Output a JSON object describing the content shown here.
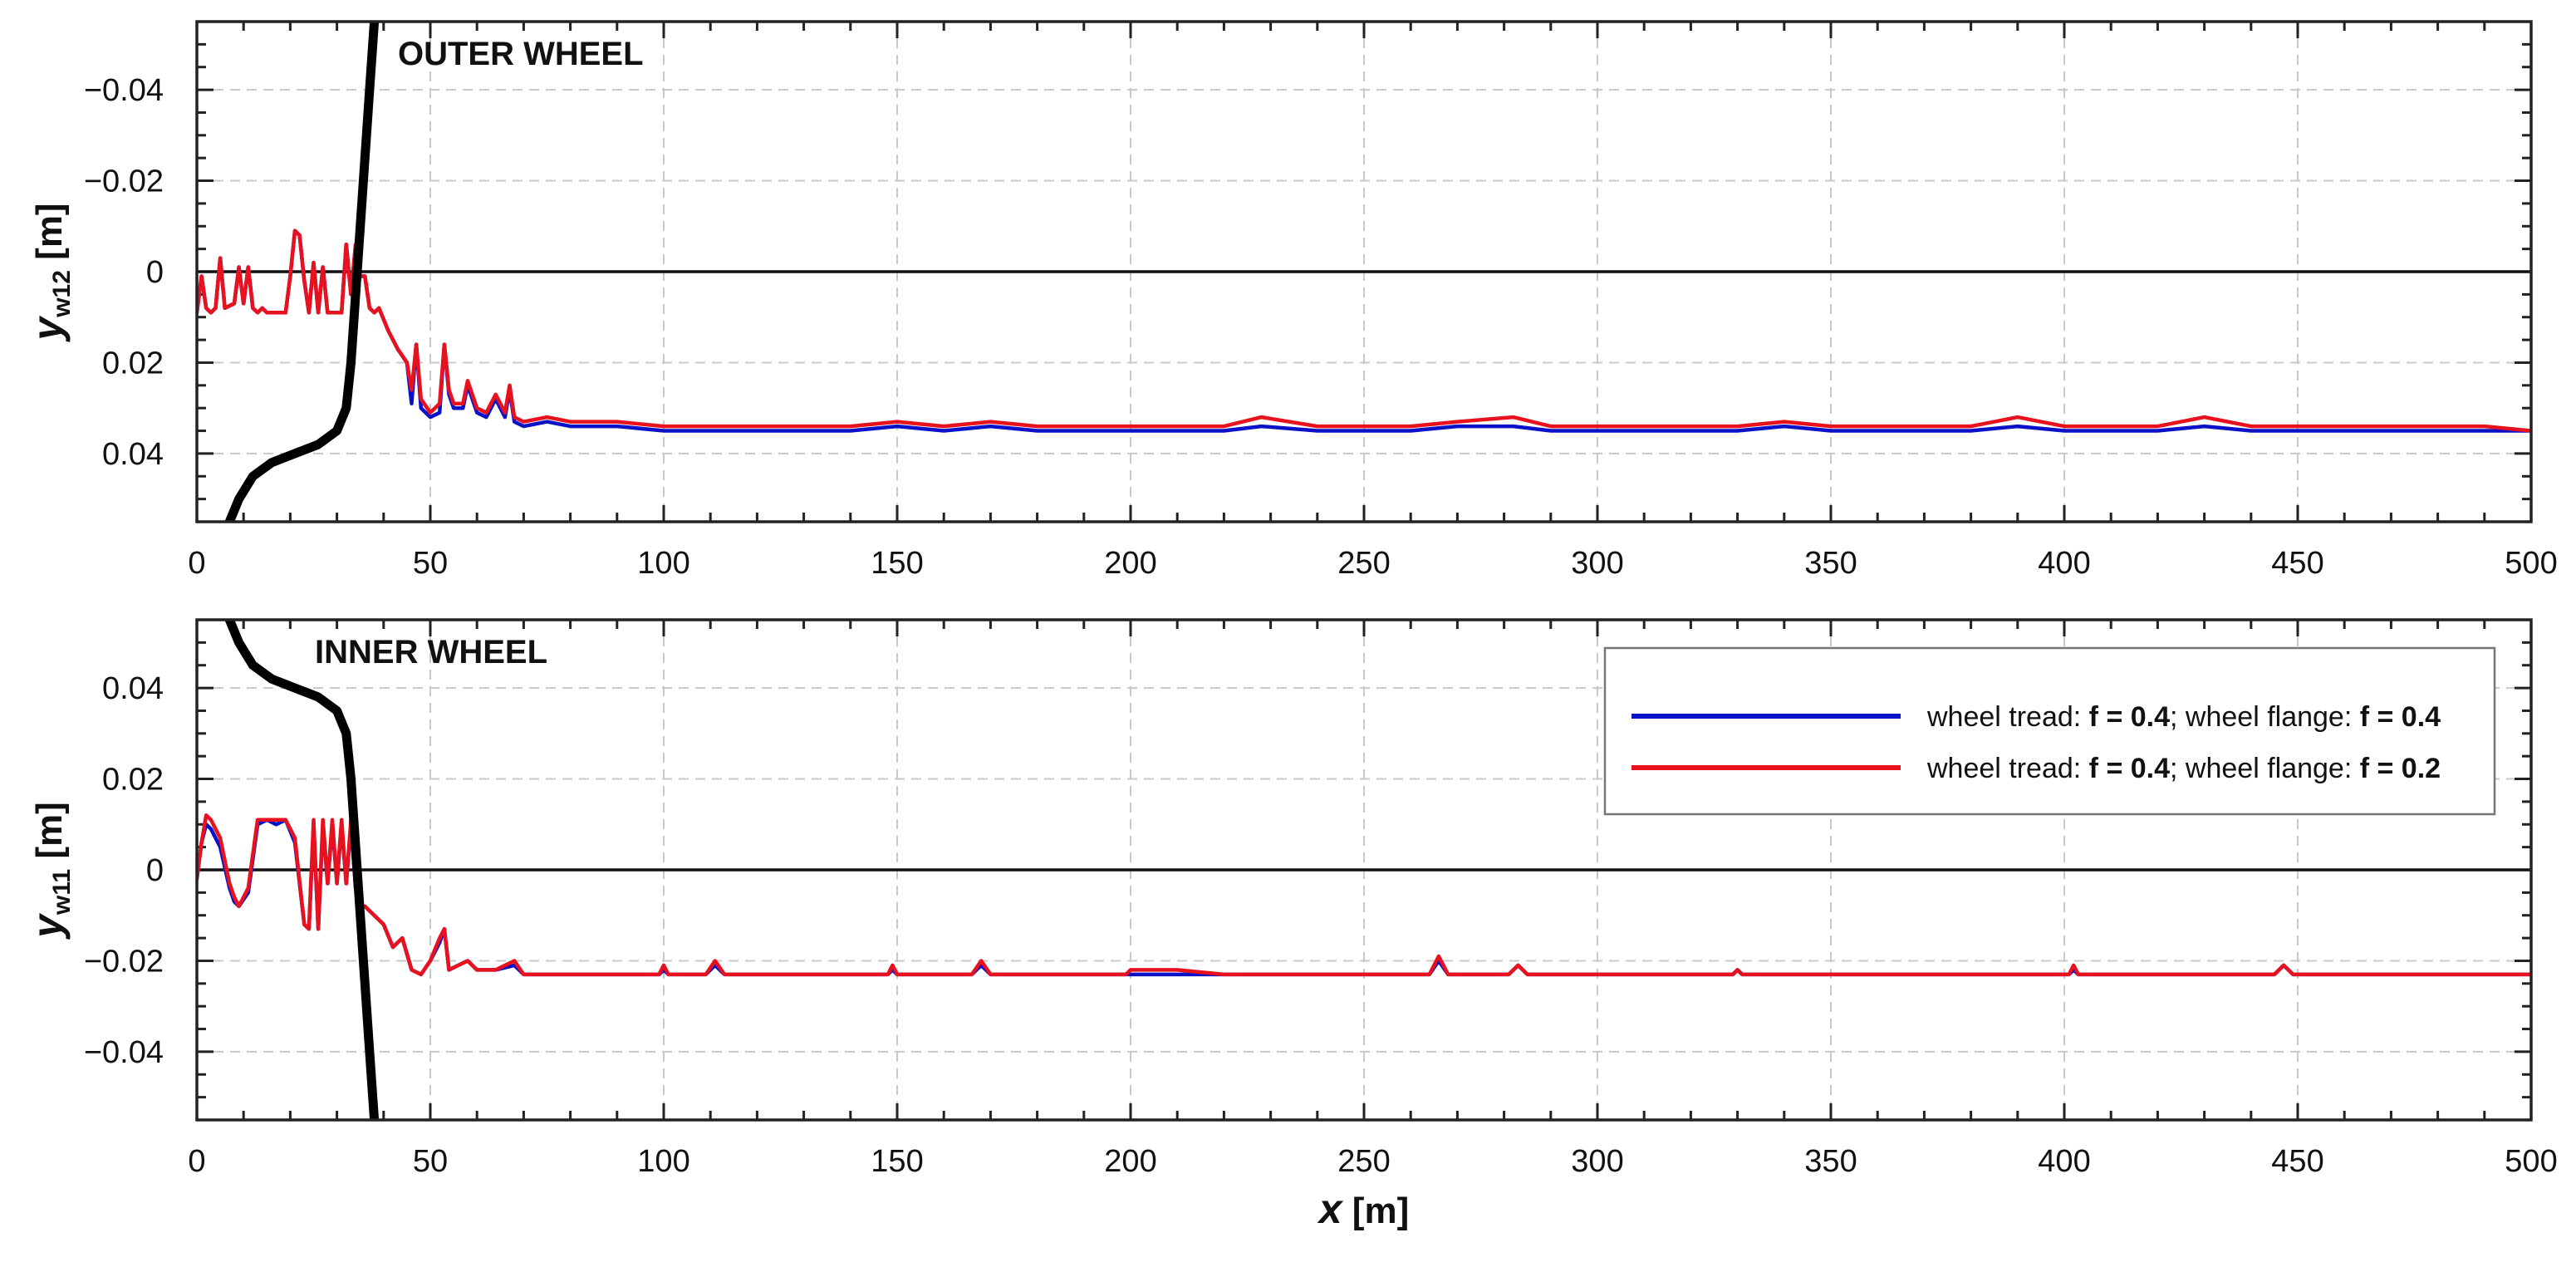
{
  "chart_data": [
    {
      "type": "line",
      "panel_title": "OUTER WHEEL",
      "ylabel_main": "y",
      "ylabel_sub": "w12",
      "ylabel_unit": " [m]",
      "xlim": [
        0,
        500
      ],
      "ylim": [
        -0.055,
        0.055
      ],
      "y_inverted": true,
      "grid": true,
      "x_ticks": [
        0,
        50,
        100,
        150,
        200,
        250,
        300,
        350,
        400,
        450,
        500
      ],
      "y_ticks": [
        -0.04,
        -0.02,
        0,
        0.02,
        0.04
      ],
      "y_tick_labels": [
        "−0.04",
        "−0.02",
        "0",
        "0.02",
        "0.04"
      ],
      "x_tick_labels": [
        "0",
        "50",
        "100",
        "150",
        "200",
        "250",
        "300",
        "350",
        "400",
        "450",
        "500"
      ],
      "zero_line": 0,
      "series": [
        {
          "color": "#0a12c8",
          "x": [
            0,
            1,
            2,
            3,
            4,
            5,
            6,
            8,
            9,
            10,
            11,
            12,
            13,
            14,
            15,
            17,
            19,
            20,
            21,
            22,
            23,
            24,
            25,
            26,
            27,
            28,
            29,
            30,
            31,
            32,
            33,
            34,
            35,
            36,
            37,
            38,
            39,
            41,
            43,
            45,
            46,
            47,
            48,
            50,
            52,
            53,
            54,
            55,
            57,
            58,
            60,
            62,
            64,
            66,
            67,
            68,
            70,
            75,
            80,
            85,
            90,
            100,
            110,
            120,
            130,
            140,
            150,
            160,
            170,
            180,
            190,
            200,
            210,
            220,
            228,
            240,
            250,
            260,
            270,
            282,
            290,
            300,
            310,
            320,
            330,
            340,
            350,
            360,
            370,
            380,
            390,
            400,
            410,
            420,
            430,
            440,
            450,
            460,
            470,
            480,
            490,
            500
          ],
          "y": [
            0.009,
            0.001,
            0.008,
            0.009,
            0.008,
            -0.003,
            0.008,
            0.007,
            -0.001,
            0.007,
            -0.001,
            0.008,
            0.009,
            0.008,
            0.009,
            0.009,
            0.009,
            0.001,
            -0.009,
            -0.008,
            0.002,
            0.009,
            -0.002,
            0.009,
            -0.001,
            0.009,
            0.009,
            0.009,
            0.009,
            -0.006,
            0.005,
            -0.006,
            0.001,
            0.001,
            0.008,
            0.009,
            0.008,
            0.013,
            0.017,
            0.02,
            0.029,
            0.016,
            0.03,
            0.032,
            0.031,
            0.016,
            0.027,
            0.03,
            0.03,
            0.025,
            0.031,
            0.032,
            0.028,
            0.032,
            0.026,
            0.033,
            0.034,
            0.033,
            0.034,
            0.034,
            0.034,
            0.035,
            0.035,
            0.035,
            0.035,
            0.035,
            0.034,
            0.035,
            0.034,
            0.035,
            0.035,
            0.035,
            0.035,
            0.035,
            0.034,
            0.035,
            0.035,
            0.035,
            0.034,
            0.034,
            0.035,
            0.035,
            0.035,
            0.035,
            0.035,
            0.034,
            0.035,
            0.035,
            0.035,
            0.035,
            0.034,
            0.035,
            0.035,
            0.035,
            0.034,
            0.035,
            0.035,
            0.035,
            0.035,
            0.035,
            0.035,
            0.035
          ]
        },
        {
          "color": "#e8121e",
          "x": [
            0,
            1,
            2,
            3,
            4,
            5,
            6,
            8,
            9,
            10,
            11,
            12,
            13,
            14,
            15,
            17,
            19,
            20,
            21,
            22,
            23,
            24,
            25,
            26,
            27,
            28,
            29,
            30,
            31,
            32,
            33,
            34,
            35,
            36,
            37,
            38,
            39,
            41,
            43,
            45,
            46,
            47,
            48,
            50,
            52,
            53,
            54,
            55,
            57,
            58,
            60,
            62,
            64,
            66,
            67,
            68,
            70,
            75,
            80,
            85,
            90,
            100,
            110,
            120,
            130,
            140,
            150,
            160,
            170,
            180,
            190,
            200,
            210,
            220,
            228,
            240,
            250,
            260,
            270,
            282,
            290,
            300,
            310,
            320,
            330,
            340,
            350,
            360,
            370,
            380,
            390,
            400,
            410,
            420,
            430,
            440,
            450,
            460,
            470,
            480,
            490,
            500
          ],
          "y": [
            0.009,
            0.001,
            0.008,
            0.009,
            0.008,
            -0.003,
            0.008,
            0.007,
            -0.001,
            0.007,
            -0.001,
            0.008,
            0.009,
            0.008,
            0.009,
            0.009,
            0.009,
            0.001,
            -0.009,
            -0.008,
            0.002,
            0.009,
            -0.002,
            0.009,
            -0.001,
            0.009,
            0.009,
            0.009,
            0.009,
            -0.006,
            0.005,
            -0.006,
            0.001,
            0.001,
            0.008,
            0.009,
            0.008,
            0.013,
            0.017,
            0.02,
            0.026,
            0.016,
            0.028,
            0.031,
            0.029,
            0.016,
            0.026,
            0.029,
            0.029,
            0.024,
            0.03,
            0.031,
            0.027,
            0.031,
            0.025,
            0.032,
            0.033,
            0.032,
            0.033,
            0.033,
            0.033,
            0.034,
            0.034,
            0.034,
            0.034,
            0.034,
            0.033,
            0.034,
            0.033,
            0.034,
            0.034,
            0.034,
            0.034,
            0.034,
            0.032,
            0.034,
            0.034,
            0.034,
            0.033,
            0.032,
            0.034,
            0.034,
            0.034,
            0.034,
            0.034,
            0.033,
            0.034,
            0.034,
            0.034,
            0.034,
            0.032,
            0.034,
            0.034,
            0.034,
            0.032,
            0.034,
            0.034,
            0.034,
            0.034,
            0.034,
            0.034,
            0.035
          ]
        },
        {
          "color": "#000000",
          "x": [
            7,
            9,
            12,
            16,
            21,
            26,
            30,
            32,
            33,
            34,
            35,
            36,
            37,
            38
          ],
          "y": [
            0.055,
            0.05,
            0.045,
            0.042,
            0.04,
            0.038,
            0.035,
            0.03,
            0.02,
            0.005,
            -0.01,
            -0.025,
            -0.04,
            -0.055
          ]
        }
      ]
    },
    {
      "type": "line",
      "panel_title": "INNER WHEEL",
      "ylabel_main": "y",
      "ylabel_sub": "w11",
      "ylabel_unit": " [m]",
      "xlabel": "x",
      "xlabel_unit": " [m]",
      "xlim": [
        0,
        500
      ],
      "ylim": [
        -0.055,
        0.055
      ],
      "y_inverted": false,
      "grid": true,
      "x_ticks": [
        0,
        50,
        100,
        150,
        200,
        250,
        300,
        350,
        400,
        450,
        500
      ],
      "y_ticks": [
        -0.04,
        -0.02,
        0,
        0.02,
        0.04
      ],
      "y_tick_labels": [
        "−0.04",
        "−0.02",
        "0",
        "0.02",
        "0.04"
      ],
      "x_tick_labels": [
        "0",
        "50",
        "100",
        "150",
        "200",
        "250",
        "300",
        "350",
        "400",
        "450",
        "500"
      ],
      "zero_line": 0,
      "series": [
        {
          "color": "#0a12c8",
          "x": [
            0,
            1,
            2,
            3,
            5,
            7,
            8,
            9,
            11,
            13,
            15,
            17,
            19,
            21,
            23,
            24,
            25,
            26,
            27,
            28,
            29,
            30,
            31,
            32,
            33,
            34,
            35,
            36,
            37,
            40,
            42,
            44,
            46,
            48,
            50,
            52,
            53,
            54,
            56,
            58,
            60,
            64,
            68,
            70,
            80,
            99,
            100,
            101,
            109,
            111,
            113,
            148,
            149,
            150,
            166,
            168,
            170,
            199,
            200,
            210,
            220,
            264,
            266,
            268,
            281,
            283,
            285,
            329,
            330,
            331,
            401,
            402,
            403,
            445,
            447,
            449,
            500
          ],
          "y": [
            -0.002,
            0.006,
            0.01,
            0.009,
            0.005,
            -0.004,
            -0.007,
            -0.008,
            -0.005,
            0.01,
            0.011,
            0.01,
            0.011,
            0.006,
            -0.012,
            -0.013,
            0.01,
            -0.013,
            0.01,
            -0.003,
            0.01,
            -0.003,
            0.01,
            -0.003,
            0.01,
            -0.004,
            -0.008,
            -0.008,
            -0.009,
            -0.012,
            -0.017,
            -0.015,
            -0.022,
            -0.023,
            -0.02,
            -0.016,
            -0.013,
            -0.022,
            -0.021,
            -0.02,
            -0.022,
            -0.022,
            -0.021,
            -0.023,
            -0.023,
            -0.023,
            -0.022,
            -0.023,
            -0.023,
            -0.021,
            -0.023,
            -0.023,
            -0.022,
            -0.023,
            -0.023,
            -0.021,
            -0.023,
            -0.023,
            -0.023,
            -0.023,
            -0.023,
            -0.023,
            -0.02,
            -0.023,
            -0.023,
            -0.021,
            -0.023,
            -0.023,
            -0.022,
            -0.023,
            -0.023,
            -0.022,
            -0.023,
            -0.023,
            -0.021,
            -0.023,
            -0.023
          ]
        },
        {
          "color": "#e8121e",
          "x": [
            0,
            1,
            2,
            3,
            5,
            7,
            8,
            9,
            11,
            13,
            15,
            17,
            19,
            21,
            23,
            24,
            25,
            26,
            27,
            28,
            29,
            30,
            31,
            32,
            33,
            34,
            35,
            36,
            37,
            40,
            42,
            44,
            46,
            48,
            50,
            52,
            53,
            54,
            56,
            58,
            60,
            64,
            68,
            70,
            80,
            99,
            100,
            101,
            109,
            111,
            113,
            148,
            149,
            150,
            166,
            168,
            170,
            199,
            200,
            210,
            220,
            264,
            266,
            268,
            281,
            283,
            285,
            329,
            330,
            331,
            401,
            402,
            403,
            445,
            447,
            449,
            500
          ],
          "y": [
            -0.002,
            0.006,
            0.012,
            0.011,
            0.007,
            -0.003,
            -0.006,
            -0.008,
            -0.004,
            0.011,
            0.011,
            0.011,
            0.011,
            0.007,
            -0.012,
            -0.013,
            0.011,
            -0.013,
            0.011,
            -0.003,
            0.011,
            -0.003,
            0.011,
            -0.003,
            0.011,
            -0.004,
            -0.008,
            -0.008,
            -0.009,
            -0.012,
            -0.017,
            -0.015,
            -0.022,
            -0.023,
            -0.02,
            -0.015,
            -0.013,
            -0.022,
            -0.021,
            -0.02,
            -0.022,
            -0.022,
            -0.02,
            -0.023,
            -0.023,
            -0.023,
            -0.021,
            -0.023,
            -0.023,
            -0.02,
            -0.023,
            -0.023,
            -0.021,
            -0.023,
            -0.023,
            -0.02,
            -0.023,
            -0.023,
            -0.022,
            -0.022,
            -0.023,
            -0.023,
            -0.019,
            -0.023,
            -0.023,
            -0.021,
            -0.023,
            -0.023,
            -0.022,
            -0.023,
            -0.023,
            -0.021,
            -0.023,
            -0.023,
            -0.021,
            -0.023,
            -0.023
          ]
        },
        {
          "color": "#000000",
          "x": [
            7,
            9,
            12,
            16,
            21,
            26,
            30,
            32,
            33,
            34,
            35,
            36,
            37,
            38
          ],
          "y": [
            0.055,
            0.05,
            0.045,
            0.042,
            0.04,
            0.038,
            0.035,
            0.03,
            0.02,
            0.005,
            -0.01,
            -0.025,
            -0.04,
            -0.055
          ]
        }
      ],
      "legend": {
        "placement": "top-right",
        "entries": [
          {
            "color": "#0a12c8",
            "prefix": "wheel tread: ",
            "f1": "f = 0.4",
            "mid": "; wheel flange: ",
            "f2": "f = 0.4"
          },
          {
            "color": "#e8121e",
            "prefix": "wheel tread: ",
            "f1": "f = 0.4",
            "mid": "; wheel flange: ",
            "f2": "f = 0.2"
          }
        ]
      }
    }
  ]
}
